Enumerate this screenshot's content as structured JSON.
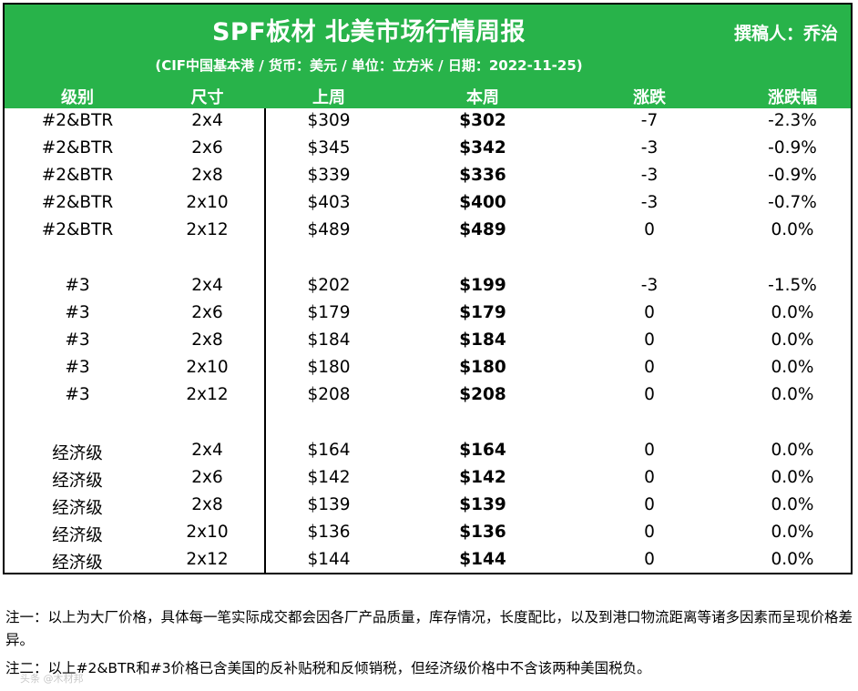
{
  "header": {
    "title": "SPF板材 北美市场行情周报",
    "author": "撰稿人：乔治",
    "subtitle": "(CIF中国基本港 / 货币：美元 / 单位：立方米 / 日期：2022-11-25)",
    "background_color": "#28b34a"
  },
  "columns": {
    "grade": "级别",
    "size": "尺寸",
    "last_week": "上周",
    "this_week": "本周",
    "change": "涨跌",
    "change_pct": "涨跌幅"
  },
  "groups": [
    {
      "rows": [
        {
          "grade": "#2&BTR",
          "size": "2x4",
          "last_week": "$309",
          "this_week": "$302",
          "change": "-7",
          "change_pct": "-2.3%"
        },
        {
          "grade": "#2&BTR",
          "size": "2x6",
          "last_week": "$345",
          "this_week": "$342",
          "change": "-3",
          "change_pct": "-0.9%"
        },
        {
          "grade": "#2&BTR",
          "size": "2x8",
          "last_week": "$339",
          "this_week": "$336",
          "change": "-3",
          "change_pct": "-0.9%"
        },
        {
          "grade": "#2&BTR",
          "size": "2x10",
          "last_week": "$403",
          "this_week": "$400",
          "change": "-3",
          "change_pct": "-0.7%"
        },
        {
          "grade": "#2&BTR",
          "size": "2x12",
          "last_week": "$489",
          "this_week": "$489",
          "change": "0",
          "change_pct": "0.0%"
        }
      ]
    },
    {
      "rows": [
        {
          "grade": "#3",
          "size": "2x4",
          "last_week": "$202",
          "this_week": "$199",
          "change": "-3",
          "change_pct": "-1.5%"
        },
        {
          "grade": "#3",
          "size": "2x6",
          "last_week": "$179",
          "this_week": "$179",
          "change": "0",
          "change_pct": "0.0%"
        },
        {
          "grade": "#3",
          "size": "2x8",
          "last_week": "$184",
          "this_week": "$184",
          "change": "0",
          "change_pct": "0.0%"
        },
        {
          "grade": "#3",
          "size": "2x10",
          "last_week": "$180",
          "this_week": "$180",
          "change": "0",
          "change_pct": "0.0%"
        },
        {
          "grade": "#3",
          "size": "2x12",
          "last_week": "$208",
          "this_week": "$208",
          "change": "0",
          "change_pct": "0.0%"
        }
      ]
    },
    {
      "rows": [
        {
          "grade": "经济级",
          "size": "2x4",
          "last_week": "$164",
          "this_week": "$164",
          "change": "0",
          "change_pct": "0.0%"
        },
        {
          "grade": "经济级",
          "size": "2x6",
          "last_week": "$142",
          "this_week": "$142",
          "change": "0",
          "change_pct": "0.0%"
        },
        {
          "grade": "经济级",
          "size": "2x8",
          "last_week": "$139",
          "this_week": "$139",
          "change": "0",
          "change_pct": "0.0%"
        },
        {
          "grade": "经济级",
          "size": "2x10",
          "last_week": "$136",
          "this_week": "$136",
          "change": "0",
          "change_pct": "0.0%"
        },
        {
          "grade": "经济级",
          "size": "2x12",
          "last_week": "$144",
          "this_week": "$144",
          "change": "0",
          "change_pct": "0.0%"
        }
      ]
    }
  ],
  "notes": {
    "note1": "注一：以上为大厂价格，具体每一笔实际成交都会因各厂产品质量，库存情况，长度配比，以及到港口物流距离等诸多因素而呈现价格差异。",
    "note2": "注二：以上#2&BTR和#3价格已含美国的反补贴税和反倾销税，但经济级价格中不含该两种美国税负。"
  },
  "watermark": "头条 @木材邦"
}
